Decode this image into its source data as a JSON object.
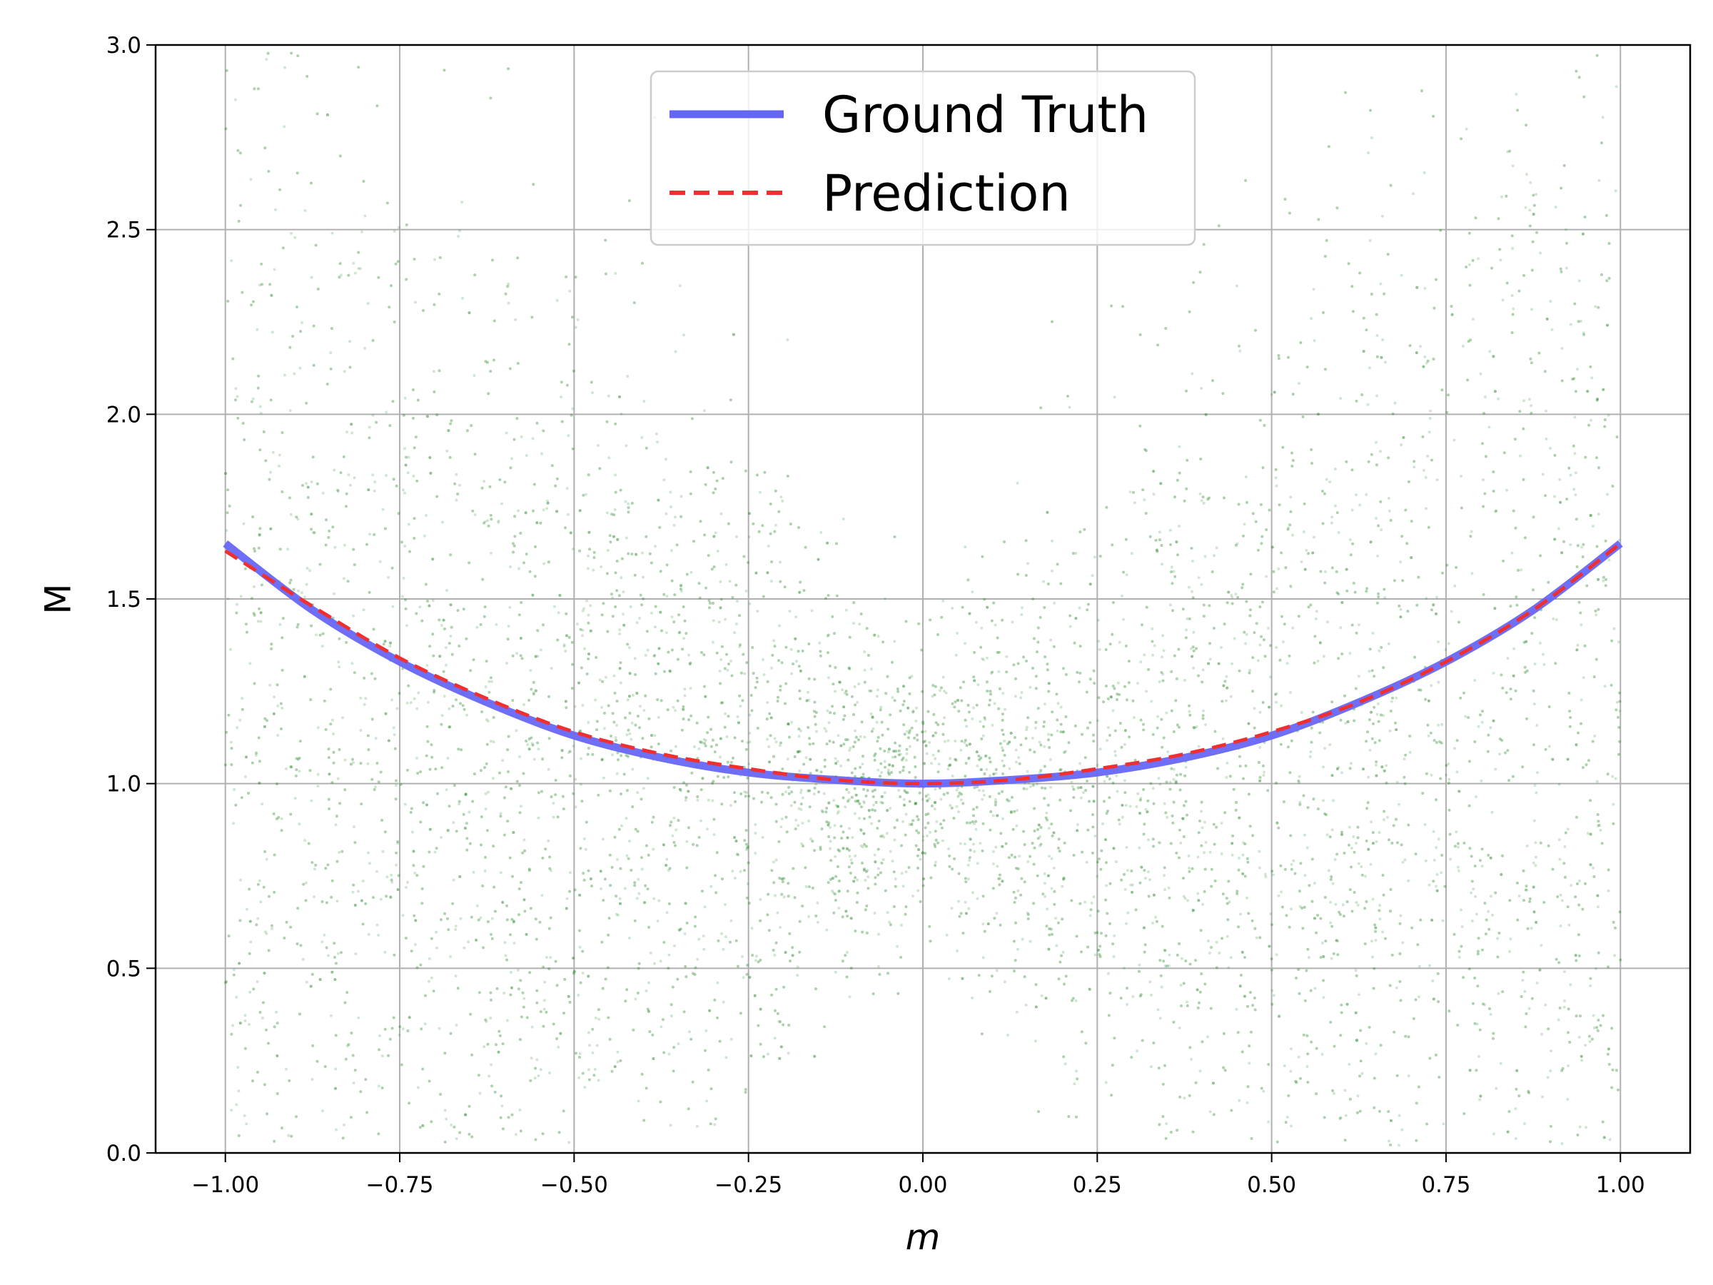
{
  "chart_data": {
    "type": "line",
    "xlabel": "m",
    "ylabel": "M",
    "xlim": [
      -1.1,
      1.1
    ],
    "ylim": [
      0.0,
      3.0
    ],
    "grid": true,
    "legend_placement": "upper-center",
    "x_ticks": [
      "−1.00",
      "−0.75",
      "−0.50",
      "−0.25",
      "0.00",
      "0.25",
      "0.50",
      "0.75",
      "1.00"
    ],
    "y_ticks": [
      "0.0",
      "0.5",
      "1.0",
      "1.5",
      "2.0",
      "2.5",
      "3.0"
    ],
    "x": [
      -1.0,
      -0.875,
      -0.75,
      -0.625,
      -0.5,
      -0.375,
      -0.25,
      -0.125,
      0.0,
      0.125,
      0.25,
      0.375,
      0.5,
      0.625,
      0.75,
      0.875,
      1.0
    ],
    "series": [
      {
        "name": "Ground Truth",
        "style": "solid",
        "color": "#6666f5",
        "values": [
          1.65,
          1.47,
          1.33,
          1.22,
          1.13,
          1.07,
          1.03,
          1.01,
          1.0,
          1.01,
          1.03,
          1.07,
          1.13,
          1.22,
          1.33,
          1.47,
          1.65
        ]
      },
      {
        "name": "Prediction",
        "style": "dashed",
        "color": "#f03030",
        "values": [
          1.63,
          1.48,
          1.34,
          1.23,
          1.14,
          1.08,
          1.04,
          1.01,
          1.0,
          1.01,
          1.04,
          1.08,
          1.14,
          1.22,
          1.33,
          1.47,
          1.65
        ]
      }
    ],
    "scatter_color": "#2e8b2e",
    "scatter_description_points": 9000
  }
}
